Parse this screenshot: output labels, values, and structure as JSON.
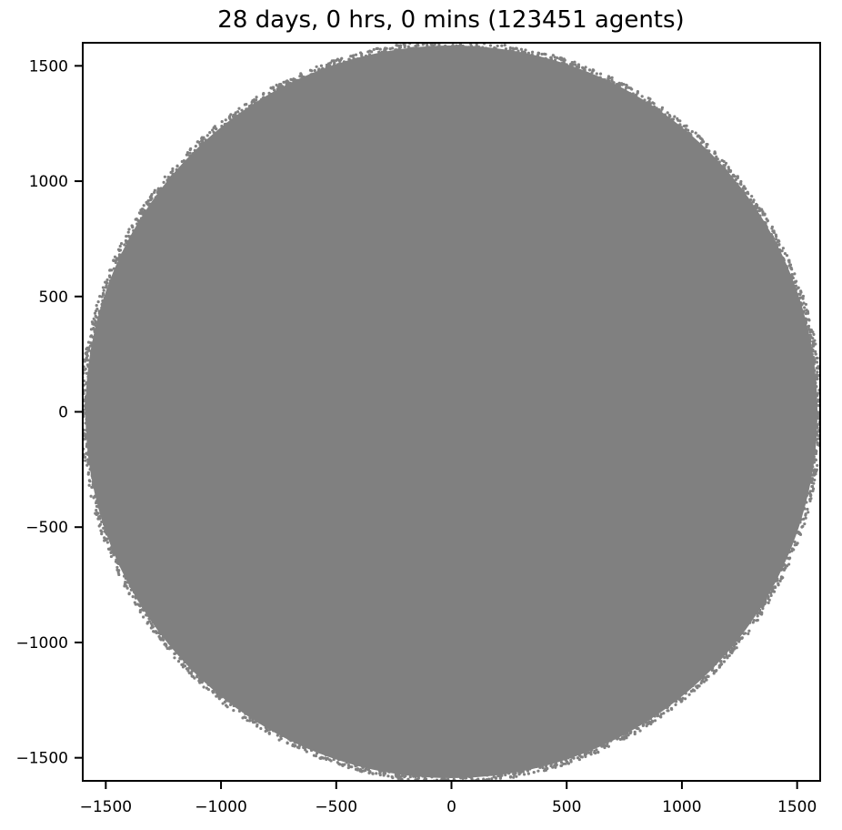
{
  "chart_data": {
    "type": "scatter",
    "title": "28 days, 0 hrs, 0 mins (123451 agents)",
    "xlabel": "",
    "ylabel": "",
    "xlim": [
      -1600,
      1600
    ],
    "ylim": [
      -1600,
      1600
    ],
    "xticks": [
      -1500,
      -1000,
      -500,
      0,
      500,
      1000,
      1500
    ],
    "yticks": [
      -1500,
      -1000,
      -500,
      0,
      500,
      1000,
      1500
    ],
    "xtick_labels": [
      "−1500",
      "−1000",
      "−500",
      "0",
      "500",
      "1000",
      "1500"
    ],
    "ytick_labels": [
      "−1500",
      "−1000",
      "−500",
      "0",
      "500",
      "1000",
      "1500"
    ],
    "grid": false,
    "legend": "none",
    "marker_color": "#808080",
    "series": [
      {
        "agent_count": 123451,
        "distribution": "uniform disk",
        "center": [
          0,
          0
        ],
        "radius": 1600
      }
    ]
  }
}
